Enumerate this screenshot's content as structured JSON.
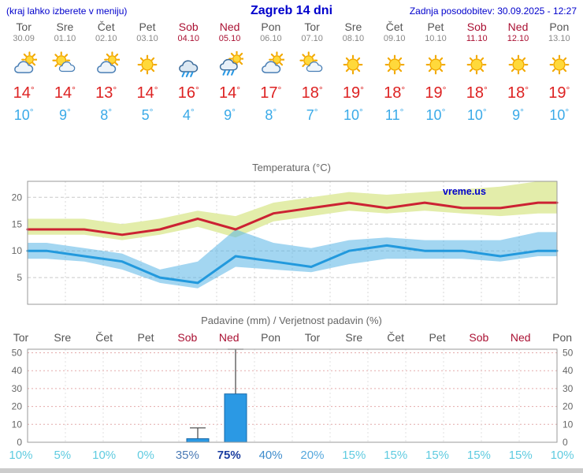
{
  "header": {
    "left": "(kraj lahko izberete v meniju)",
    "title": "Zagreb 14 dni",
    "updated": "Zadnja posodobitev: 30.09.2025 - 12:27"
  },
  "units": {
    "degree": "°"
  },
  "days": [
    {
      "name": "Tor",
      "date": "30.09",
      "icon": "cloud-sun",
      "high": "14",
      "low": "10",
      "weekend": false
    },
    {
      "name": "Sre",
      "date": "01.10",
      "icon": "sun-cloud",
      "high": "14",
      "low": "9",
      "weekend": false
    },
    {
      "name": "Čet",
      "date": "02.10",
      "icon": "cloud-sun",
      "high": "13",
      "low": "8",
      "weekend": false
    },
    {
      "name": "Pet",
      "date": "03.10",
      "icon": "sun",
      "high": "14",
      "low": "5",
      "weekend": false
    },
    {
      "name": "Sob",
      "date": "04.10",
      "icon": "rain",
      "high": "16",
      "low": "4",
      "weekend": true
    },
    {
      "name": "Ned",
      "date": "05.10",
      "icon": "sun-rain",
      "high": "14",
      "low": "9",
      "weekend": true
    },
    {
      "name": "Pon",
      "date": "06.10",
      "icon": "cloud-sun",
      "high": "17",
      "low": "8",
      "weekend": false
    },
    {
      "name": "Tor",
      "date": "07.10",
      "icon": "sun-cloud",
      "high": "18",
      "low": "7",
      "weekend": false
    },
    {
      "name": "Sre",
      "date": "08.10",
      "icon": "sun",
      "high": "19",
      "low": "10",
      "weekend": false
    },
    {
      "name": "Čet",
      "date": "09.10",
      "icon": "sun",
      "high": "18",
      "low": "11",
      "weekend": false
    },
    {
      "name": "Pet",
      "date": "10.10",
      "icon": "sun",
      "high": "19",
      "low": "10",
      "weekend": false
    },
    {
      "name": "Sob",
      "date": "11.10",
      "icon": "sun",
      "high": "18",
      "low": "10",
      "weekend": true
    },
    {
      "name": "Ned",
      "date": "12.10",
      "icon": "sun",
      "high": "18",
      "low": "9",
      "weekend": true
    },
    {
      "name": "Pon",
      "date": "13.10",
      "icon": "sun",
      "high": "19",
      "low": "10",
      "weekend": false
    }
  ],
  "chart_data": [
    {
      "type": "line",
      "title": "Temperatura (°C)",
      "watermark": "vreme.us",
      "watermark_color": "#0000cc",
      "categories": [
        "Tor",
        "Sre",
        "Čet",
        "Pet",
        "Sob",
        "Ned",
        "Pon",
        "Tor",
        "Sre",
        "Čet",
        "Pet",
        "Sob",
        "Ned",
        "Pon"
      ],
      "ylim": [
        0,
        23
      ],
      "yticks": [
        5,
        10,
        15,
        20
      ],
      "series": [
        {
          "name": "max",
          "color": "#cc2233",
          "values": [
            14,
            14,
            13,
            14,
            16,
            14,
            17,
            18,
            19,
            18,
            19,
            18,
            18,
            19
          ]
        },
        {
          "name": "min",
          "color": "#2299dd",
          "values": [
            10,
            9,
            8,
            5,
            4,
            9,
            8,
            7,
            10,
            11,
            10,
            10,
            9,
            10
          ]
        }
      ],
      "band_max": {
        "color": "#e3edaa",
        "top": [
          16,
          16,
          15,
          16,
          17.5,
          16.5,
          19,
          20,
          21,
          20.5,
          21,
          21.5,
          22,
          23
        ],
        "bottom": [
          13,
          13,
          12,
          13,
          14.5,
          12.5,
          15.5,
          16.5,
          17.5,
          17,
          17.5,
          17,
          16.5,
          17
        ]
      },
      "band_min": {
        "color": "#58b4e6",
        "top": [
          11.5,
          10.5,
          9.5,
          6.5,
          8,
          14,
          11.5,
          10.5,
          12,
          12.5,
          12,
          12,
          12,
          13.5
        ],
        "bottom": [
          8.5,
          8,
          6.5,
          4,
          3,
          7,
          6.5,
          6,
          7.5,
          8.5,
          8.5,
          8.5,
          8,
          9
        ]
      }
    },
    {
      "type": "bar",
      "title": "Padavine (mm) / Verjetnost padavin (%)",
      "categories": [
        "Tor",
        "Sre",
        "Čet",
        "Pet",
        "Sob",
        "Ned",
        "Pon",
        "Tor",
        "Sre",
        "Čet",
        "Pet",
        "Sob",
        "Ned",
        "Pon"
      ],
      "weekend_indices": [
        4,
        5,
        11,
        12
      ],
      "ylim": [
        0,
        52
      ],
      "yticks": [
        0,
        10,
        20,
        30,
        40,
        50
      ],
      "values": [
        0,
        0,
        0,
        0,
        2,
        27,
        0,
        0,
        0,
        0,
        0,
        0,
        0,
        0
      ],
      "whisker_top": [
        0,
        0,
        0,
        0,
        8,
        52,
        0,
        0,
        0,
        0,
        0,
        0,
        0,
        0
      ],
      "bar_color": "#2b99e4",
      "bar_border": "#1668a8",
      "probabilities": [
        {
          "label": "10%",
          "color": "#5fcbe0",
          "bold": false
        },
        {
          "label": "5%",
          "color": "#5fcbe0",
          "bold": false
        },
        {
          "label": "10%",
          "color": "#5fcbe0",
          "bold": false
        },
        {
          "label": "0%",
          "color": "#5fcbe0",
          "bold": false
        },
        {
          "label": "35%",
          "color": "#4a7ab5",
          "bold": false
        },
        {
          "label": "75%",
          "color": "#1c3fa0",
          "bold": true
        },
        {
          "label": "40%",
          "color": "#3e8ccc",
          "bold": false
        },
        {
          "label": "20%",
          "color": "#55a8dd",
          "bold": false
        },
        {
          "label": "15%",
          "color": "#5fcbe0",
          "bold": false
        },
        {
          "label": "15%",
          "color": "#5fcbe0",
          "bold": false
        },
        {
          "label": "15%",
          "color": "#5fcbe0",
          "bold": false
        },
        {
          "label": "15%",
          "color": "#5fcbe0",
          "bold": false
        },
        {
          "label": "15%",
          "color": "#5fcbe0",
          "bold": false
        },
        {
          "label": "10%",
          "color": "#5fcbe0",
          "bold": false
        }
      ]
    }
  ]
}
